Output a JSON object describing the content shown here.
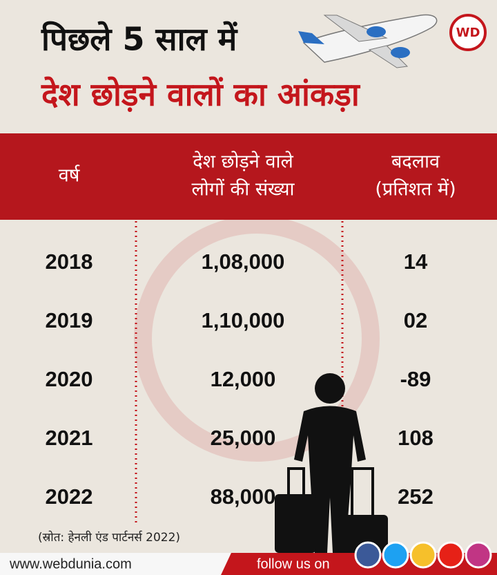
{
  "header": {
    "title": [
      "पिछले 5 साल में",
      "देश छोड़ने वालों का आंकड़ा"
    ],
    "logo": "WD"
  },
  "table": {
    "columns": [
      [
        "वर्ष"
      ],
      [
        "देश छोड़ने वाले",
        "लोगों की संख्या"
      ],
      [
        "बदलाव",
        "(प्रतिशत में)"
      ]
    ],
    "rows": [
      [
        "2018",
        "1,08,000",
        "14"
      ],
      [
        "2019",
        "1,10,000",
        "02"
      ],
      [
        "2020",
        "12,000",
        "-89"
      ],
      [
        "2021",
        "25,000",
        "108"
      ],
      [
        "2022",
        "88,000",
        "252"
      ]
    ]
  },
  "source": "(स्रोत: हेनली एंड पार्टनर्स 2022)",
  "footer": {
    "website": "www.webdunia.com",
    "follow": "follow us on"
  }
}
